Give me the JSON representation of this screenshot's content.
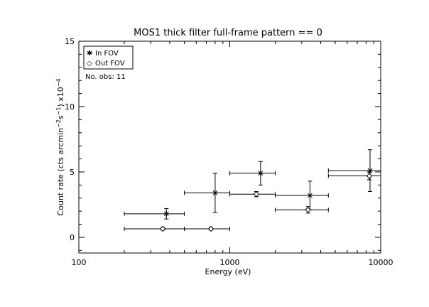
{
  "chart_data": {
    "type": "scatter",
    "title": "MOS1 thick filter full-frame pattern == 0",
    "xlabel": "Energy (eV)",
    "ylabel_main": "Count rate (cts arcmin",
    "ylabel_exp1": "−2",
    "ylabel_mid": "s",
    "ylabel_exp2": "−1",
    "ylabel_end": ") x10",
    "ylabel_exp3": "−4",
    "x_scale": "log",
    "xlim": [
      100,
      10000
    ],
    "ylim": [
      -1.2,
      15
    ],
    "x_ticks": [
      100,
      1000,
      10000
    ],
    "x_tick_labels": [
      "100",
      "1000",
      "10000"
    ],
    "y_ticks": [
      0,
      5,
      10,
      15
    ],
    "y_tick_labels": [
      "0",
      "5",
      "10",
      "15"
    ],
    "legend": {
      "placement": "top-left",
      "entries": [
        {
          "symbol": "✱",
          "label": "In FOV"
        },
        {
          "symbol": "◇",
          "label": "Out FOV"
        }
      ]
    },
    "annotation": "No. obs: 11",
    "series": [
      {
        "name": "In FOV",
        "marker": "asterisk",
        "points": [
          {
            "x": 380,
            "y": 1.8,
            "xlo": 200,
            "xhi": 500,
            "ylo": 1.4,
            "yhi": 2.2
          },
          {
            "x": 800,
            "y": 3.4,
            "xlo": 500,
            "xhi": 1000,
            "ylo": 1.9,
            "yhi": 4.9
          },
          {
            "x": 1600,
            "y": 4.9,
            "xlo": 1000,
            "xhi": 2000,
            "ylo": 4.0,
            "yhi": 5.8
          },
          {
            "x": 3400,
            "y": 3.2,
            "xlo": 2000,
            "xhi": 4500,
            "ylo": 2.1,
            "yhi": 4.3
          },
          {
            "x": 8500,
            "y": 5.1,
            "xlo": 4500,
            "xhi": 10000,
            "ylo": 3.5,
            "yhi": 6.7
          }
        ]
      },
      {
        "name": "Out FOV",
        "marker": "diamond",
        "points": [
          {
            "x": 360,
            "y": 0.65,
            "xlo": 200,
            "xhi": 500,
            "ylo": 0.55,
            "yhi": 0.75
          },
          {
            "x": 750,
            "y": 0.65,
            "xlo": 500,
            "xhi": 1000,
            "ylo": 0.55,
            "yhi": 0.75
          },
          {
            "x": 1500,
            "y": 3.3,
            "xlo": 1000,
            "xhi": 2000,
            "ylo": 3.1,
            "yhi": 3.5
          },
          {
            "x": 3300,
            "y": 2.1,
            "xlo": 2000,
            "xhi": 4500,
            "ylo": 1.85,
            "yhi": 2.35
          },
          {
            "x": 8400,
            "y": 4.7,
            "xlo": 4500,
            "xhi": 10000,
            "ylo": 4.4,
            "yhi": 5.0
          }
        ]
      }
    ]
  }
}
